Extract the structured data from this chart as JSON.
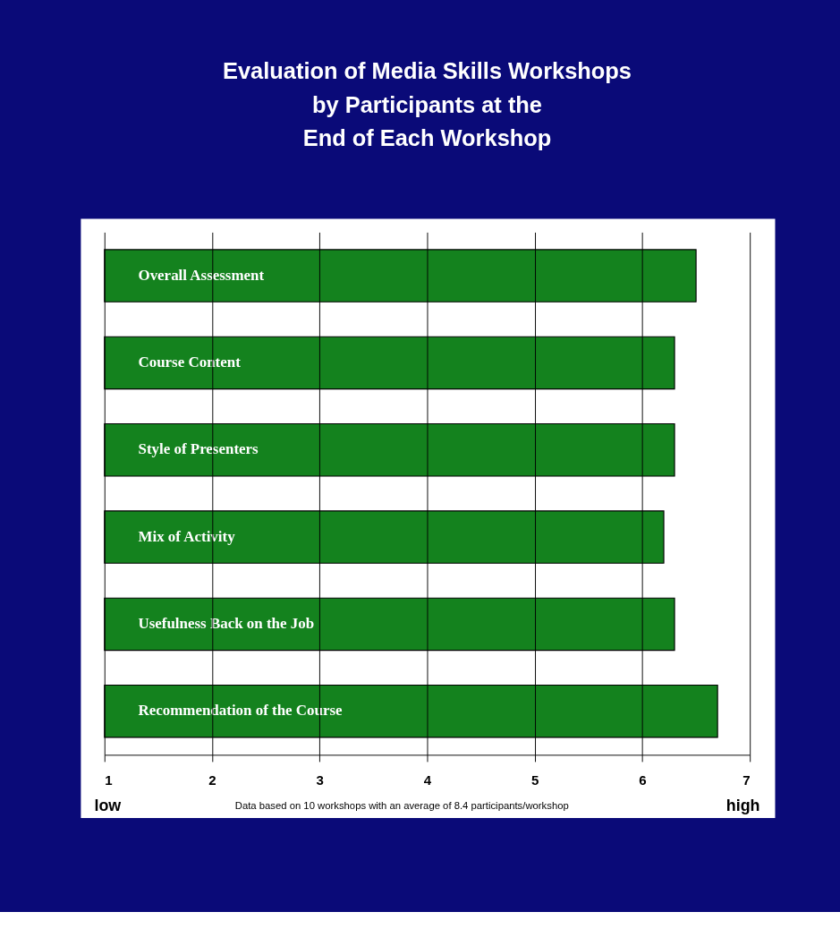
{
  "chart_data": {
    "type": "bar",
    "orientation": "horizontal",
    "title": "Evaluation of Media Skills Workshops\nby Participants at the\nEnd of Each Workshop",
    "categories": [
      "Overall Assessment",
      "Course Content",
      "Style of Presenters",
      "Mix of Activity",
      "Usefulness Back on the Job",
      "Recommendation of the Course"
    ],
    "values": [
      6.5,
      6.3,
      6.3,
      6.2,
      6.3,
      6.7
    ],
    "color": "#14821e",
    "xlim": [
      1,
      7
    ],
    "xticks": [
      1,
      2,
      3,
      4,
      5,
      6,
      7
    ],
    "grid": "x",
    "annotations": [
      "low",
      "Data based on 10 workshops with an average of 8.4 participants/workshop",
      "high"
    ]
  }
}
